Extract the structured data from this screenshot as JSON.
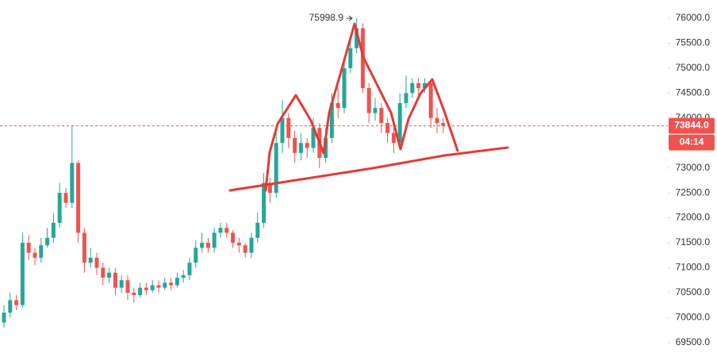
{
  "chart_data": {
    "type": "candlestick",
    "up_color": "#26a69a",
    "down_color": "#ef5350",
    "open": [
      69900,
      70100,
      70350,
      70250,
      71500,
      71300,
      71200,
      71450,
      71600,
      71900,
      72500,
      72300,
      73100,
      71700,
      71100,
      71200,
      71000,
      70800,
      70900,
      70600,
      70750,
      70500,
      70450,
      70600,
      70550,
      70650,
      70600,
      70700,
      70650,
      70800,
      70850,
      71100,
      71400,
      71500,
      71400,
      71700,
      71800,
      71700,
      71500,
      71450,
      71300,
      71600,
      71900,
      72700,
      72500,
      73500,
      74000,
      73600,
      73300,
      73500,
      73400,
      73800,
      73200,
      73600,
      74300,
      74200,
      75000,
      75400,
      75800,
      74600,
      74100,
      74200,
      73900,
      73700,
      73500,
      74300,
      74500,
      74700,
      74600,
      74700,
      74000,
      73900
    ],
    "high": [
      70250,
      70500,
      70450,
      71700,
      71650,
      71400,
      71600,
      71800,
      72100,
      72700,
      72600,
      73850,
      73150,
      71800,
      71400,
      71300,
      71100,
      71000,
      71000,
      70850,
      70850,
      70600,
      70700,
      70700,
      70750,
      70750,
      70800,
      70800,
      70900,
      70950,
      71200,
      71550,
      71700,
      71600,
      71800,
      71900,
      71900,
      71750,
      71600,
      71500,
      71700,
      72100,
      72900,
      72800,
      73700,
      74350,
      74100,
      73750,
      73700,
      73600,
      74000,
      73900,
      73800,
      74500,
      74600,
      75200,
      75600,
      75998.9,
      75900,
      74700,
      74400,
      74300,
      74000,
      73800,
      74500,
      74850,
      74800,
      74800,
      74800,
      74750,
      74200,
      74000
    ],
    "low": [
      69800,
      70000,
      70150,
      70200,
      71150,
      71050,
      71100,
      71400,
      71500,
      71800,
      72200,
      72200,
      71500,
      70900,
      71000,
      70850,
      70650,
      70700,
      70450,
      70500,
      70350,
      70300,
      70400,
      70450,
      70500,
      70500,
      70550,
      70550,
      70600,
      70700,
      70750,
      71000,
      71300,
      71300,
      71300,
      71600,
      71600,
      71400,
      71300,
      71200,
      71200,
      71500,
      71800,
      72300,
      72400,
      73300,
      73400,
      73100,
      73150,
      73200,
      73300,
      73000,
      73100,
      73500,
      74000,
      74100,
      74900,
      75300,
      74500,
      73900,
      73950,
      73700,
      73500,
      73300,
      73400,
      74200,
      74400,
      74400,
      74500,
      73800,
      73700,
      73700
    ],
    "close": [
      70100,
      70350,
      70250,
      71500,
      71300,
      71200,
      71450,
      71600,
      71900,
      72500,
      72300,
      73100,
      71700,
      71100,
      71200,
      71000,
      70800,
      70900,
      70600,
      70750,
      70500,
      70450,
      70600,
      70550,
      70650,
      70600,
      70700,
      70650,
      70800,
      70850,
      71100,
      71400,
      71500,
      71400,
      71700,
      71800,
      71700,
      71500,
      71450,
      71300,
      71600,
      71900,
      72700,
      72500,
      73500,
      74000,
      73600,
      73300,
      73500,
      73400,
      73800,
      73200,
      73600,
      74300,
      74200,
      75000,
      75400,
      75800,
      74600,
      74100,
      74200,
      73900,
      73700,
      73500,
      74300,
      74500,
      74700,
      74600,
      74700,
      74000,
      73900,
      73844
    ],
    "last_price": {
      "value": 73844,
      "label": "73844.0"
    },
    "timer": "04:14",
    "ylim": [
      69211,
      76365
    ],
    "yticks": [
      {
        "value": 69500,
        "label": "69500.0"
      },
      {
        "value": 70000,
        "label": "70000.0"
      },
      {
        "value": 70500,
        "label": "70500.0"
      },
      {
        "value": 71000,
        "label": "71000.0"
      },
      {
        "value": 71500,
        "label": "71500.0"
      },
      {
        "value": 72000,
        "label": "72000.0"
      },
      {
        "value": 72500,
        "label": "72500.0"
      },
      {
        "value": 73000,
        "label": "73000.0"
      },
      {
        "value": 73500,
        "label": "73500.0"
      },
      {
        "value": 74000,
        "label": "74000.0"
      },
      {
        "value": 74500,
        "label": "74500.0"
      },
      {
        "value": 75000,
        "label": "75000.0"
      },
      {
        "value": 75500,
        "label": "75500.0"
      },
      {
        "value": 76000,
        "label": "76000.0"
      }
    ],
    "grid": false
  }
}
